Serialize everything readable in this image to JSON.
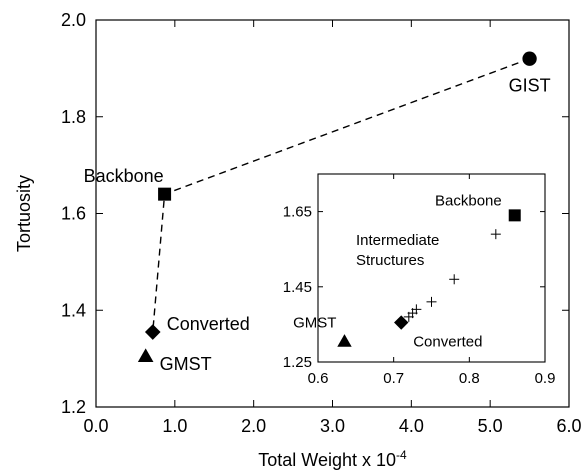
{
  "chart_data": [
    {
      "type": "scatter",
      "xlabel": "Total Weight x 10",
      "xlabel_exponent": "-4",
      "ylabel": "Tortuosity",
      "xlim": [
        0.0,
        6.0
      ],
      "ylim": [
        1.2,
        2.0
      ],
      "xticks": [
        "0.0",
        "1.0",
        "2.0",
        "3.0",
        "4.0",
        "5.0",
        "6.0"
      ],
      "yticks": [
        "1.2",
        "1.4",
        "1.6",
        "1.8",
        "2.0"
      ],
      "grid": false,
      "connector_order": [
        "GIST",
        "Backbone",
        "Converted"
      ],
      "points": [
        {
          "label": "GIST",
          "x": 5.5,
          "y": 1.92,
          "marker": "circle"
        },
        {
          "label": "Backbone",
          "x": 0.87,
          "y": 1.64,
          "marker": "square"
        },
        {
          "label": "Converted",
          "x": 0.72,
          "y": 1.355,
          "marker": "diamond"
        },
        {
          "label": "GMST",
          "x": 0.63,
          "y": 1.305,
          "marker": "triangle"
        }
      ]
    },
    {
      "type": "scatter",
      "inset": true,
      "xlim": [
        0.6,
        0.9
      ],
      "ylim": [
        1.25,
        1.75
      ],
      "xticks": [
        "0.6",
        "0.7",
        "0.8",
        "0.9"
      ],
      "yticks": [
        "1.25",
        "1.45",
        "1.65"
      ],
      "grid": false,
      "points": [
        {
          "label": "Backbone",
          "x": 0.86,
          "y": 1.64,
          "marker": "square"
        },
        {
          "label": "GMST",
          "x": 0.635,
          "y": 1.305,
          "marker": "triangle"
        },
        {
          "label": "Converted",
          "x": 0.71,
          "y": 1.355,
          "marker": "diamond"
        }
      ],
      "intermediate_label_lines": [
        "Intermediate",
        "Structures"
      ],
      "intermediate": [
        {
          "x": 0.72,
          "y": 1.37
        },
        {
          "x": 0.725,
          "y": 1.38
        },
        {
          "x": 0.73,
          "y": 1.39
        },
        {
          "x": 0.75,
          "y": 1.41
        },
        {
          "x": 0.78,
          "y": 1.47
        },
        {
          "x": 0.835,
          "y": 1.59
        }
      ]
    }
  ]
}
